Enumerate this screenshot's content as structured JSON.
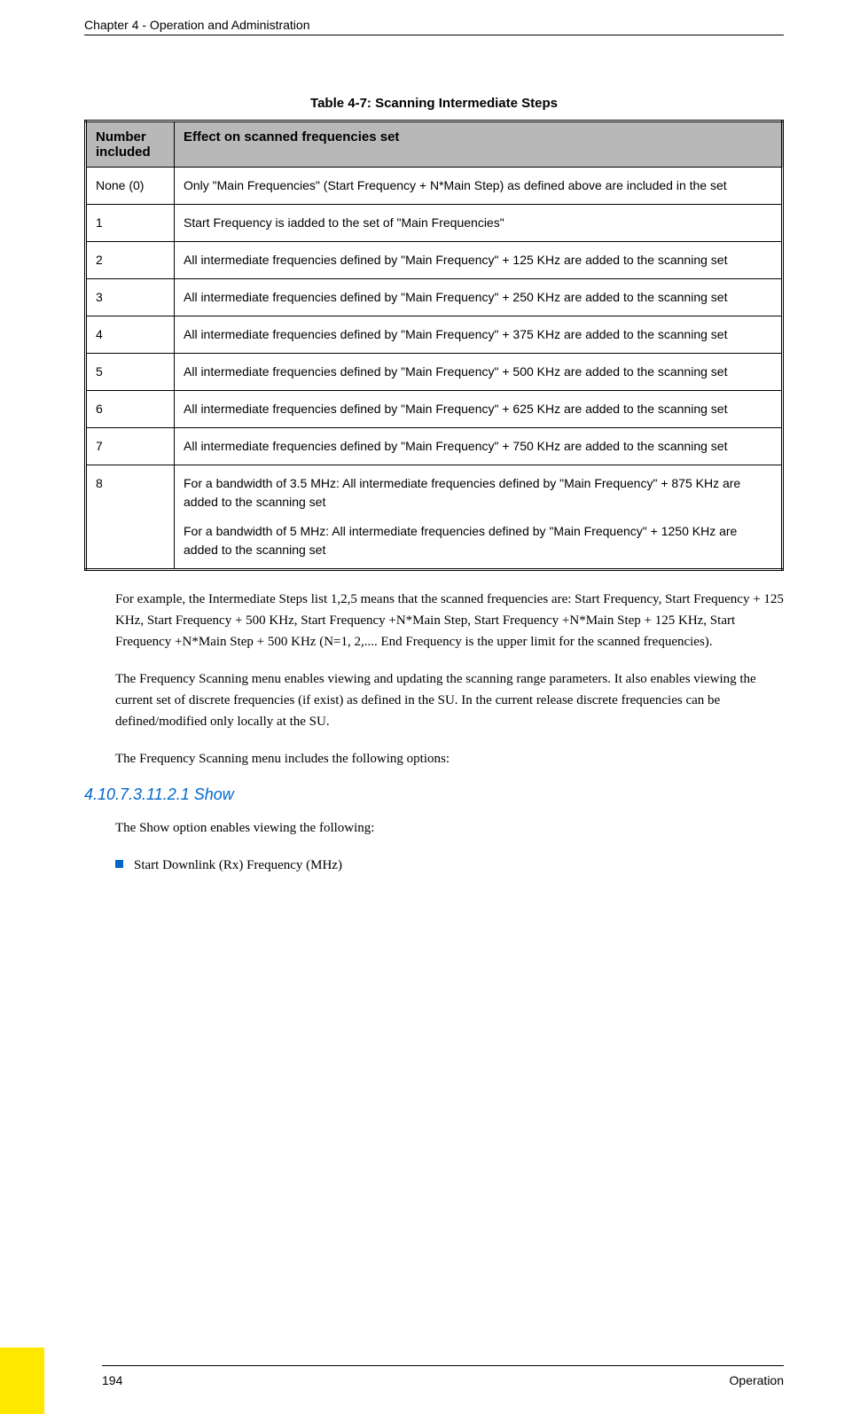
{
  "header": {
    "chapter": "Chapter 4 - Operation and Administration"
  },
  "table": {
    "caption": "Table 4-7: Scanning Intermediate Steps",
    "headers": {
      "col1": "Number included",
      "col2": "Effect on scanned frequencies set"
    },
    "rows": [
      {
        "num": "None (0)",
        "effect": "Only \"Main Frequencies\" (Start Frequency + N*Main Step) as defined above are included in the set"
      },
      {
        "num": "1",
        "effect": "Start Frequency is iadded to the set of \"Main Frequencies\""
      },
      {
        "num": "2",
        "effect": "All intermediate frequencies defined by \"Main Frequency\" + 125 KHz are added to the scanning set"
      },
      {
        "num": "3",
        "effect": "All intermediate frequencies defined by \"Main Frequency\" + 250 KHz are added to the scanning set"
      },
      {
        "num": "4",
        "effect": "All intermediate frequencies defined by \"Main Frequency\" + 375 KHz are added to the scanning set"
      },
      {
        "num": "5",
        "effect": "All intermediate frequencies defined by \"Main Frequency\" + 500 KHz are added to the scanning set"
      },
      {
        "num": "6",
        "effect": "All intermediate frequencies defined by \"Main Frequency\" + 625 KHz are added to the scanning set"
      },
      {
        "num": "7",
        "effect": "All intermediate frequencies defined by \"Main Frequency\" + 750 KHz are added to the scanning set"
      },
      {
        "num": "8",
        "effect": "For a bandwidth of 3.5 MHz: All intermediate frequencies defined by \"Main Frequency\" + 875 KHz are added to the scanning set",
        "effect2": "For a bandwidth of 5 MHz: All intermediate frequencies defined by \"Main Frequency\" + 1250 KHz are added to the scanning set"
      }
    ]
  },
  "paragraphs": {
    "p1": "For example, the Intermediate Steps list 1,2,5 means that the scanned frequencies are: Start Frequency, Start Frequency + 125 KHz, Start Frequency + 500 KHz, Start Frequency +N*Main Step, Start Frequency +N*Main Step + 125 KHz, Start Frequency +N*Main Step + 500 KHz (N=1, 2,.... End Frequency is the upper limit for the scanned frequencies).",
    "p2": "The Frequency Scanning menu enables viewing and updating the scanning range parameters. It also enables viewing the current set of discrete frequencies (if exist) as defined in the SU. In the current release discrete frequencies can be defined/modified only locally at the SU.",
    "p3": "The Frequency Scanning menu includes the following options:"
  },
  "section": {
    "number": "4.10.7.3.11.2.1",
    "title": "Show",
    "text": "The Show option enables viewing the following:"
  },
  "bullet": {
    "item1": "Start Downlink (Rx) Frequency (MHz)"
  },
  "footer": {
    "page": "194",
    "label": "Operation"
  },
  "colors": {
    "table_header_bg": "#b8b8b8",
    "section_heading": "#0066cc",
    "bullet_color": "#0066cc",
    "yellow_corner": "#ffe800",
    "text": "#000000",
    "background": "#ffffff"
  }
}
